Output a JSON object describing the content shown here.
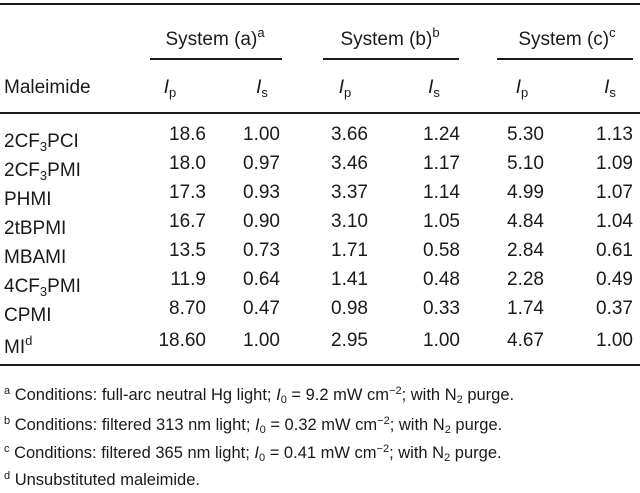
{
  "table": {
    "groups": [
      {
        "label": "System (a)",
        "mark": "a"
      },
      {
        "label": "System (b)",
        "mark": "b"
      },
      {
        "label": "System (c)",
        "mark": "c"
      }
    ],
    "row_header": "Maleimide",
    "ip": {
      "sym": "I",
      "sub": "p"
    },
    "is": {
      "sym": "I",
      "sub": "s"
    },
    "rows": [
      {
        "pre": "2CF",
        "sub": "3",
        "post": "PCI",
        "mark": "",
        "values": [
          "18.6",
          "1.00",
          "3.66",
          "1.24",
          "5.30",
          "1.13"
        ]
      },
      {
        "pre": "2CF",
        "sub": "3",
        "post": "PMI",
        "mark": "",
        "values": [
          "18.0",
          "0.97",
          "3.46",
          "1.17",
          "5.10",
          "1.09"
        ]
      },
      {
        "pre": "PHMI",
        "sub": "",
        "post": "",
        "mark": "",
        "values": [
          "17.3",
          "0.93",
          "3.37",
          "1.14",
          "4.99",
          "1.07"
        ]
      },
      {
        "pre": "2tBPMI",
        "sub": "",
        "post": "",
        "mark": "",
        "values": [
          "16.7",
          "0.90",
          "3.10",
          "1.05",
          "4.84",
          "1.04"
        ]
      },
      {
        "pre": "MBAMI",
        "sub": "",
        "post": "",
        "mark": "",
        "values": [
          "13.5",
          "0.73",
          "1.71",
          "0.58",
          "2.84",
          "0.61"
        ]
      },
      {
        "pre": "4CF",
        "sub": "3",
        "post": "PMI",
        "mark": "",
        "values": [
          "11.9",
          "0.64",
          "1.41",
          "0.48",
          "2.28",
          "0.49"
        ]
      },
      {
        "pre": "CPMI",
        "sub": "",
        "post": "",
        "mark": "",
        "values": [
          "8.70",
          "0.47",
          "0.98",
          "0.33",
          "1.74",
          "0.37"
        ]
      },
      {
        "pre": "MI",
        "sub": "",
        "post": "",
        "mark": "d",
        "values": [
          "18.60",
          "1.00",
          "2.95",
          "1.00",
          "4.67",
          "1.00"
        ]
      }
    ]
  },
  "footnotes": [
    {
      "mark": "a",
      "t1": "Conditions: full-arc neutral Hg light; ",
      "i0": "I",
      "i0sub": "0",
      "t2": " = 9.2 mW cm",
      "exp": "−2",
      "t3": "; with N",
      "n2sub": "2",
      "t4": " purge."
    },
    {
      "mark": "b",
      "t1": "Conditions: filtered 313 nm light; ",
      "i0": "I",
      "i0sub": "0",
      "t2": " = 0.32 mW cm",
      "exp": "−2",
      "t3": "; with N",
      "n2sub": "2",
      "t4": " purge."
    },
    {
      "mark": "c",
      "t1": "Conditions: filtered 365 nm light; ",
      "i0": "I",
      "i0sub": "0",
      "t2": " = 0.41 mW cm",
      "exp": "−2",
      "t3": "; with N",
      "n2sub": "2",
      "t4": " purge."
    },
    {
      "mark": "d",
      "t1": "Unsubstituted maleimide."
    }
  ]
}
